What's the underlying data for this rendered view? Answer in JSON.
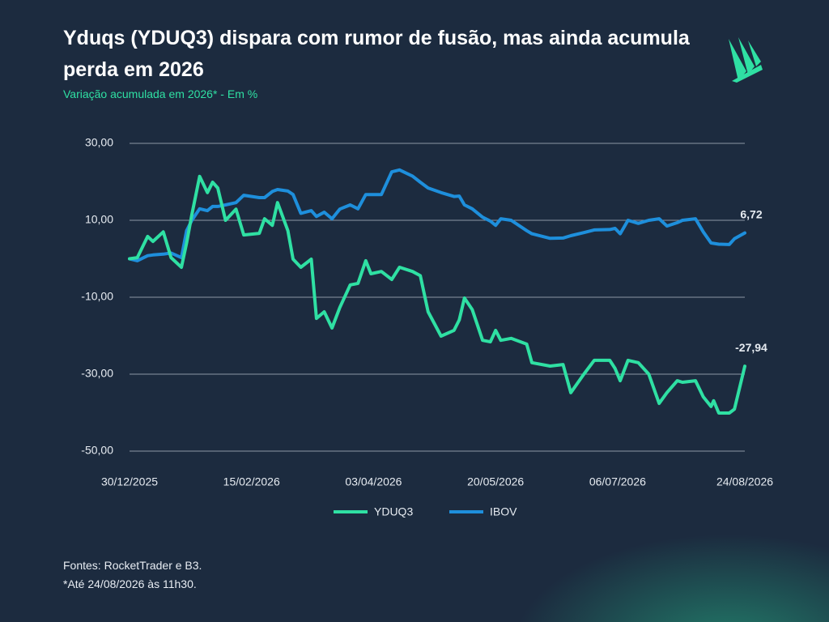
{
  "chart_data": {
    "type": "line",
    "title": "Yduqs (YDUQ3) dispara com rumor de fusão, mas ainda acumula perda em 2026",
    "subtitle": "Variação acumulada em 2026* - Em %",
    "notes": [
      "Fontes: RocketTrader e B3.",
      "*Até 24/08/2026 às 11h30."
    ],
    "x": [
      "2025-12-30",
      "2026-01-02",
      "2026-01-06",
      "2026-01-08",
      "2026-01-12",
      "2026-01-15",
      "2026-01-19",
      "2026-01-21",
      "2026-01-23",
      "2026-01-26",
      "2026-01-29",
      "2026-01-31",
      "2026-02-02",
      "2026-02-05",
      "2026-02-09",
      "2026-02-12",
      "2026-02-18",
      "2026-02-20",
      "2026-02-23",
      "2026-02-25",
      "2026-03-01",
      "2026-03-03",
      "2026-03-06",
      "2026-03-10",
      "2026-03-12",
      "2026-03-15",
      "2026-03-18",
      "2026-03-21",
      "2026-03-25",
      "2026-03-28",
      "2026-03-31",
      "2026-04-02",
      "2026-04-06",
      "2026-04-10",
      "2026-04-13",
      "2026-04-18",
      "2026-04-21",
      "2026-04-24",
      "2026-04-29",
      "2026-05-04",
      "2026-05-06",
      "2026-05-08",
      "2026-05-11",
      "2026-05-15",
      "2026-05-18",
      "2026-05-20",
      "2026-05-22",
      "2026-05-26",
      "2026-06-01",
      "2026-06-03",
      "2026-06-10",
      "2026-06-15",
      "2026-06-18",
      "2026-06-23",
      "2026-06-27",
      "2026-07-03",
      "2026-07-05",
      "2026-07-07",
      "2026-07-10",
      "2026-07-14",
      "2026-07-18",
      "2026-07-22",
      "2026-07-25",
      "2026-07-29",
      "2026-07-31",
      "2026-08-05",
      "2026-08-08",
      "2026-08-11",
      "2026-08-12",
      "2026-08-14",
      "2026-08-18",
      "2026-08-20",
      "2026-08-24"
    ],
    "series": [
      {
        "name": "YDUQ3",
        "color": "#2fe0a3",
        "values": [
          0,
          0.3,
          5.8,
          4.5,
          7,
          0.3,
          -2.2,
          4.1,
          11.5,
          21.4,
          17.2,
          19.9,
          18.4,
          10,
          12.9,
          6.2,
          6.6,
          10.4,
          8.7,
          14.6,
          7.3,
          -0.1,
          -2.2,
          -0.1,
          -15.5,
          -13.8,
          -18,
          -12.7,
          -6.8,
          -6.4,
          -0.5,
          -3.9,
          -3.3,
          -5.4,
          -2.2,
          -3.3,
          -4.4,
          -13.8,
          -20.1,
          -18.6,
          -15.9,
          -10.2,
          -13.2,
          -21.2,
          -21.6,
          -18.6,
          -21.2,
          -20.7,
          -22.2,
          -27,
          -27.9,
          -27.5,
          -34.8,
          -30,
          -26.4,
          -26.4,
          -28.5,
          -31.7,
          -26.4,
          -27,
          -30,
          -37.6,
          -34.8,
          -31.7,
          -32.1,
          -31.7,
          -35.9,
          -38.4,
          -36.9,
          -40.1,
          -40.1,
          -39.1,
          -27.94
        ],
        "value_labels": [
          null,
          null,
          null,
          null,
          null,
          null,
          null,
          null,
          null,
          null,
          null,
          null,
          null,
          null,
          null,
          null,
          null,
          null,
          null,
          null,
          null,
          null,
          null,
          null,
          null,
          null,
          null,
          null,
          null,
          null,
          null,
          null,
          null,
          null,
          null,
          null,
          null,
          null,
          null,
          null,
          null,
          null,
          null,
          null,
          null,
          null,
          null,
          null,
          null,
          null,
          null,
          null,
          null,
          null,
          null,
          null,
          null,
          null,
          null,
          null,
          null,
          null,
          null,
          null,
          null,
          null,
          null,
          null,
          null,
          null,
          null,
          null,
          "-27,94"
        ]
      },
      {
        "name": "IBOV",
        "color": "#1e8fdc",
        "values": [
          0,
          -0.5,
          0.8,
          1,
          1.2,
          1.5,
          0.3,
          7.3,
          10,
          13,
          12.5,
          13.6,
          13.6,
          14,
          14.6,
          16.5,
          15.9,
          15.9,
          17.5,
          18,
          17.6,
          16.7,
          11.8,
          12.5,
          11,
          12.1,
          10.4,
          12.9,
          14,
          13,
          16.7,
          16.7,
          16.7,
          22.6,
          23.1,
          21.5,
          19.9,
          18.4,
          17.2,
          16.2,
          16.3,
          14,
          13,
          10.8,
          9.8,
          8.7,
          10.4,
          10,
          7.3,
          6.5,
          5.3,
          5.4,
          6,
          6.8,
          7.5,
          7.6,
          7.9,
          6.5,
          10,
          9.2,
          10,
          10.4,
          8.5,
          9.4,
          10,
          10.4,
          7,
          4.1,
          4,
          3.8,
          3.7,
          5.2,
          6.72
        ],
        "value_labels": [
          null,
          null,
          null,
          null,
          null,
          null,
          null,
          null,
          null,
          null,
          null,
          null,
          null,
          null,
          null,
          null,
          null,
          null,
          null,
          null,
          null,
          null,
          null,
          null,
          null,
          null,
          null,
          null,
          null,
          null,
          null,
          null,
          null,
          null,
          null,
          null,
          null,
          null,
          null,
          null,
          null,
          null,
          null,
          null,
          null,
          null,
          null,
          null,
          null,
          null,
          null,
          null,
          null,
          null,
          null,
          null,
          null,
          null,
          null,
          null,
          null,
          null,
          null,
          null,
          null,
          null,
          null,
          null,
          null,
          null,
          null,
          null,
          "6,72"
        ]
      }
    ],
    "xlim": [
      "2025-12-30",
      "2026-08-24"
    ],
    "xticks": [
      {
        "value": "2025-12-30",
        "label": "30/12/2025"
      },
      {
        "value": "2026-02-15",
        "label": "15/02/2026"
      },
      {
        "value": "2026-04-03",
        "label": "03/04/2026"
      },
      {
        "value": "2026-05-20",
        "label": "20/05/2026"
      },
      {
        "value": "2026-07-06",
        "label": "06/07/2026"
      },
      {
        "value": "2026-08-24",
        "label": "24/08/2026"
      }
    ],
    "ylim": [
      -50,
      30
    ],
    "yticks": [
      {
        "value": 30,
        "label": "30,00"
      },
      {
        "value": 10,
        "label": "10,00"
      },
      {
        "value": -10,
        "label": "-10,00"
      },
      {
        "value": -30,
        "label": "-30,00"
      },
      {
        "value": -50,
        "label": "-50,00"
      }
    ],
    "grid": true
  }
}
